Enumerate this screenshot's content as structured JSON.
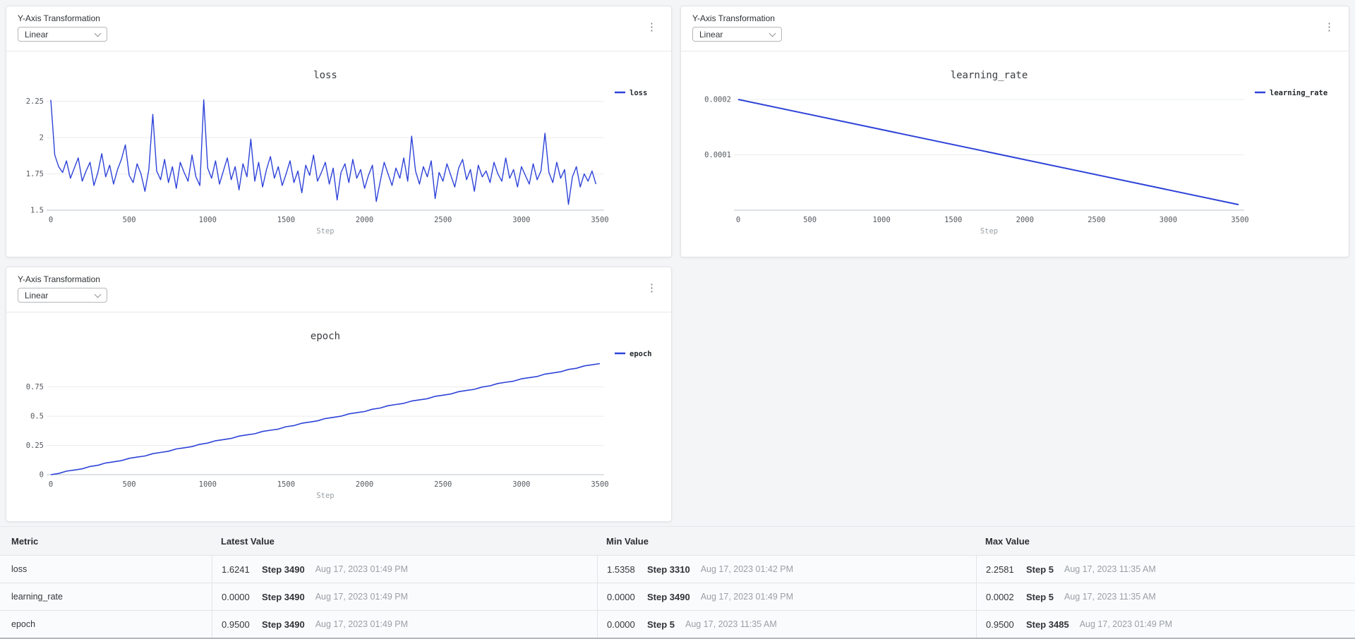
{
  "colors": {
    "line_blue": "#2e43d8",
    "page_bg": "#f4f5f7"
  },
  "icons": {
    "kebab": "⋮"
  },
  "panels": [
    {
      "y_axis_label": "Y-Axis Transformation",
      "dropdown_value": "Linear"
    },
    {
      "y_axis_label": "Y-Axis Transformation",
      "dropdown_value": "Linear"
    },
    {
      "y_axis_label": "Y-Axis Transformation",
      "dropdown_value": "Linear"
    }
  ],
  "chart_data": [
    {
      "type": "line",
      "title": "loss",
      "xlabel": "Step",
      "legend": {
        "label": "loss",
        "position": "right"
      },
      "xlim": [
        0,
        3500
      ],
      "ylim": [
        1.5,
        2.37
      ],
      "xticks": [
        0,
        500,
        1000,
        1500,
        2000,
        2500,
        3000,
        3500
      ],
      "yticks": [
        {
          "v": 1.5,
          "label": "1.5"
        },
        {
          "v": 1.75,
          "label": "1.75"
        },
        {
          "v": 2,
          "label": "2"
        },
        {
          "v": 2.25,
          "label": "2.25"
        }
      ],
      "x_start": 0,
      "x_step": 25,
      "values": [
        2.26,
        1.88,
        1.8,
        1.76,
        1.84,
        1.72,
        1.79,
        1.86,
        1.7,
        1.77,
        1.83,
        1.67,
        1.76,
        1.89,
        1.73,
        1.81,
        1.68,
        1.78,
        1.85,
        1.95,
        1.74,
        1.69,
        1.82,
        1.75,
        1.63,
        1.78,
        2.16,
        1.77,
        1.71,
        1.85,
        1.69,
        1.8,
        1.65,
        1.83,
        1.76,
        1.7,
        1.88,
        1.73,
        1.67,
        2.26,
        1.79,
        1.72,
        1.84,
        1.68,
        1.77,
        1.86,
        1.71,
        1.8,
        1.64,
        1.82,
        1.73,
        1.99,
        1.7,
        1.83,
        1.66,
        1.78,
        1.87,
        1.72,
        1.8,
        1.67,
        1.75,
        1.84,
        1.69,
        1.77,
        1.62,
        1.81,
        1.74,
        1.88,
        1.7,
        1.76,
        1.83,
        1.68,
        1.79,
        1.57,
        1.76,
        1.82,
        1.69,
        1.85,
        1.72,
        1.78,
        1.65,
        1.74,
        1.81,
        1.56,
        1.7,
        1.83,
        1.75,
        1.67,
        1.79,
        1.72,
        1.86,
        1.7,
        2.01,
        1.77,
        1.68,
        1.8,
        1.73,
        1.84,
        1.58,
        1.76,
        1.7,
        1.82,
        1.74,
        1.66,
        1.79,
        1.85,
        1.71,
        1.78,
        1.63,
        1.81,
        1.73,
        1.77,
        1.69,
        1.83,
        1.75,
        1.7,
        1.86,
        1.72,
        1.78,
        1.66,
        1.8,
        1.74,
        1.68,
        1.82,
        1.71,
        1.77,
        2.03,
        1.76,
        1.69,
        1.83,
        1.72,
        1.78,
        1.54,
        1.73,
        1.8,
        1.66,
        1.75,
        1.7,
        1.77,
        1.68
      ],
      "line_width": 1.4,
      "layout": {
        "margin_left": 63,
        "margin_right": 101,
        "grid": true,
        "legend_position": "right"
      }
    },
    {
      "type": "line",
      "title": "learning_rate",
      "xlabel": "Step",
      "legend": {
        "label": "learning_rate",
        "position": "right"
      },
      "xlim": [
        0,
        3500
      ],
      "ylim": [
        0,
        0.000228
      ],
      "xticks": [
        0,
        500,
        1000,
        1500,
        2000,
        2500,
        3000,
        3500
      ],
      "yticks": [
        {
          "v": 0.0001,
          "label": "0.0001"
        },
        {
          "v": 0.0002,
          "label": "0.0002"
        }
      ],
      "points_x": [
        0,
        3490
      ],
      "points_y": [
        0.0002,
        1e-05
      ],
      "line_width": 2,
      "layout": {
        "margin_left": 81,
        "margin_right": 154,
        "grid": true,
        "legend_position": "right"
      }
    },
    {
      "type": "line",
      "title": "epoch",
      "xlabel": "Step",
      "legend": {
        "label": "epoch",
        "position": "right"
      },
      "xlim": [
        0,
        3500
      ],
      "ylim": [
        0,
        1.11
      ],
      "xticks": [
        0,
        500,
        1000,
        1500,
        2000,
        2500,
        3000,
        3500
      ],
      "yticks": [
        {
          "v": 0,
          "label": "0"
        },
        {
          "v": 0.25,
          "label": "0.25"
        },
        {
          "v": 0.5,
          "label": "0.5"
        },
        {
          "v": 0.75,
          "label": "0.75"
        }
      ],
      "x_start": 0,
      "x_step": 50,
      "values": [
        0,
        0.01,
        0.03,
        0.04,
        0.05,
        0.07,
        0.08,
        0.1,
        0.11,
        0.12,
        0.14,
        0.15,
        0.16,
        0.18,
        0.19,
        0.2,
        0.22,
        0.23,
        0.24,
        0.26,
        0.27,
        0.29,
        0.3,
        0.31,
        0.33,
        0.34,
        0.35,
        0.37,
        0.38,
        0.39,
        0.41,
        0.42,
        0.44,
        0.45,
        0.46,
        0.48,
        0.49,
        0.5,
        0.52,
        0.53,
        0.54,
        0.56,
        0.57,
        0.59,
        0.6,
        0.61,
        0.63,
        0.64,
        0.65,
        0.67,
        0.68,
        0.69,
        0.71,
        0.72,
        0.73,
        0.75,
        0.76,
        0.78,
        0.79,
        0.8,
        0.82,
        0.83,
        0.84,
        0.86,
        0.87,
        0.88,
        0.9,
        0.91,
        0.93,
        0.94,
        0.95
      ],
      "line_width": 1.6,
      "layout": {
        "margin_left": 63,
        "margin_right": 101,
        "grid": true,
        "legend_position": "right"
      }
    }
  ],
  "table": {
    "headers": [
      "Metric",
      "Latest Value",
      "Min Value",
      "Max Value"
    ],
    "rows": [
      {
        "metric": "loss",
        "latest": {
          "value": "1.6241",
          "step": "Step 3490",
          "time": "Aug 17, 2023 01:49 PM"
        },
        "min": {
          "value": "1.5358",
          "step": "Step 3310",
          "time": "Aug 17, 2023 01:42 PM"
        },
        "max": {
          "value": "2.2581",
          "step": "Step 5",
          "time": "Aug 17, 2023 11:35 AM"
        }
      },
      {
        "metric": "learning_rate",
        "latest": {
          "value": "0.0000",
          "step": "Step 3490",
          "time": "Aug 17, 2023 01:49 PM"
        },
        "min": {
          "value": "0.0000",
          "step": "Step 3490",
          "time": "Aug 17, 2023 01:49 PM"
        },
        "max": {
          "value": "0.0002",
          "step": "Step 5",
          "time": "Aug 17, 2023 11:35 AM"
        }
      },
      {
        "metric": "epoch",
        "latest": {
          "value": "0.9500",
          "step": "Step 3490",
          "time": "Aug 17, 2023 01:49 PM"
        },
        "min": {
          "value": "0.0000",
          "step": "Step 5",
          "time": "Aug 17, 2023 11:35 AM"
        },
        "max": {
          "value": "0.9500",
          "step": "Step 3485",
          "time": "Aug 17, 2023 01:49 PM"
        }
      }
    ]
  }
}
